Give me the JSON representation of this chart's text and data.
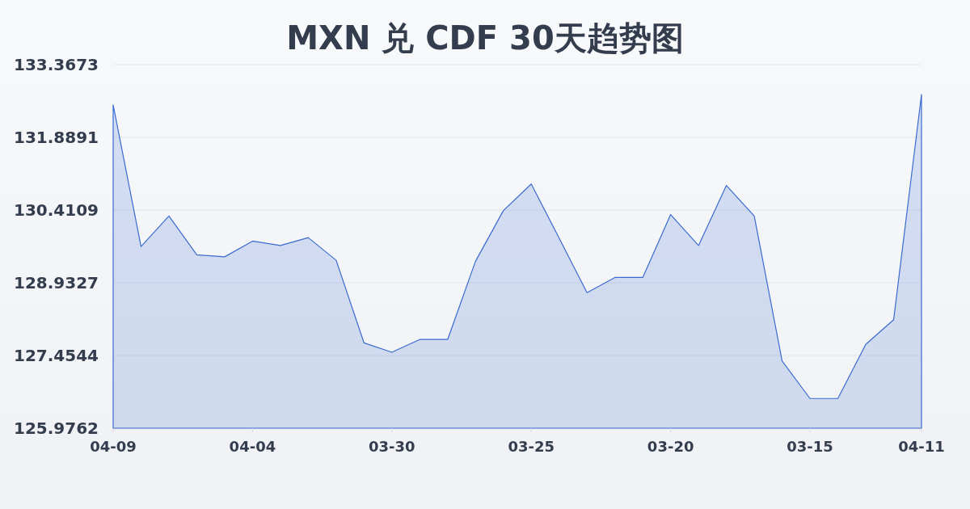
{
  "chart_data": {
    "type": "area",
    "title": "MXN 兑 CDF 30天趋势图",
    "categories": [
      "04-09",
      null,
      null,
      null,
      null,
      "04-04",
      null,
      null,
      null,
      null,
      "03-30",
      null,
      null,
      null,
      null,
      "03-25",
      null,
      null,
      null,
      null,
      "03-20",
      null,
      null,
      null,
      null,
      "03-15",
      null,
      null,
      null,
      "04-11"
    ],
    "series": [
      {
        "color": "#3a6bd0",
        "values": [
          132.55,
          129.67,
          130.29,
          129.5,
          129.46,
          129.78,
          129.69,
          129.85,
          129.39,
          127.71,
          127.52,
          127.78,
          127.78,
          129.37,
          130.4,
          130.94,
          129.84,
          128.73,
          129.04,
          129.04,
          130.32,
          129.69,
          130.91,
          130.29,
          127.34,
          126.58,
          126.58,
          127.68,
          128.18,
          132.76
        ]
      }
    ],
    "ylim": [
      125.9762,
      133.3673
    ],
    "yticks": [
      125.9762,
      127.4544,
      128.9327,
      130.4109,
      131.8891,
      133.3673
    ],
    "grid": "y"
  }
}
